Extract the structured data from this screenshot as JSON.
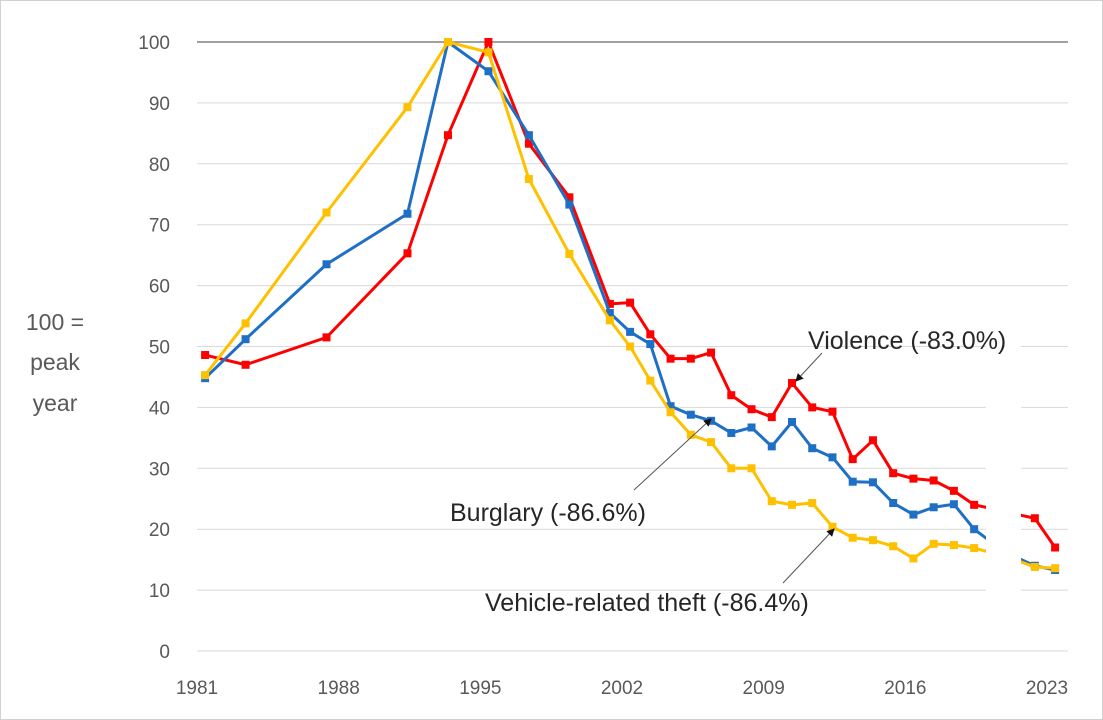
{
  "chart_data": {
    "type": "line",
    "title": "",
    "xlabel": "",
    "ylabel": [
      "100 =",
      "peak",
      "year"
    ],
    "xlim": [
      1981,
      2023
    ],
    "ylim": [
      0,
      100
    ],
    "x_ticks": [
      "1981",
      "1988",
      "1995",
      "2002",
      "2009",
      "2016",
      "2023"
    ],
    "y_ticks": [
      "0",
      "10",
      "20",
      "30",
      "40",
      "50",
      "60",
      "70",
      "80",
      "90",
      "100"
    ],
    "grid": true,
    "x": [
      1981,
      1983,
      1987,
      1991,
      1993,
      1995,
      1997,
      1999,
      2001,
      2002,
      2003,
      2004,
      2005,
      2006,
      2007,
      2008,
      2009,
      2010,
      2011,
      2012,
      2013,
      2014,
      2015,
      2016,
      2017,
      2018,
      2019,
      2020,
      2021,
      2022,
      2023
    ],
    "series": [
      {
        "name": "Violence",
        "color": "#ff0000",
        "label": "Violence (-83.0%)",
        "values": [
          48.6,
          47,
          51.5,
          65.3,
          84.7,
          100,
          83.3,
          74.5,
          57,
          57.2,
          52,
          48,
          48,
          49,
          42,
          39.7,
          38.4,
          44,
          40,
          39.3,
          31.5,
          34.6,
          29.2,
          28.3,
          28,
          26.3,
          24,
          23.3,
          22.5,
          21.8,
          17
        ]
      },
      {
        "name": "Burglary",
        "color": "#1f6fc5",
        "label": "Burglary (-86.6%)",
        "values": [
          44.8,
          51.2,
          63.5,
          71.8,
          100,
          95.2,
          84.7,
          73.3,
          55.5,
          52.4,
          50.4,
          40.2,
          38.8,
          37.8,
          35.8,
          36.7,
          33.6,
          37.6,
          33.3,
          31.8,
          27.8,
          27.7,
          24.3,
          22.4,
          23.6,
          24.1,
          20,
          17.5,
          15.5,
          14,
          13.3
        ]
      },
      {
        "name": "Vehicle-related theft",
        "color": "#ffc000",
        "label": "Vehicle-related theft (-86.4%)",
        "values": [
          45.3,
          53.8,
          72,
          89.3,
          100,
          98.3,
          77.5,
          65.2,
          54.3,
          50,
          44.4,
          39.2,
          35.5,
          34.3,
          30,
          30,
          24.6,
          24,
          24.3,
          20.4,
          18.6,
          18.2,
          17.2,
          15.2,
          17.6,
          17.4,
          16.9,
          16,
          15,
          13.8,
          13.6
        ]
      }
    ],
    "legend": "inline-annotations"
  }
}
